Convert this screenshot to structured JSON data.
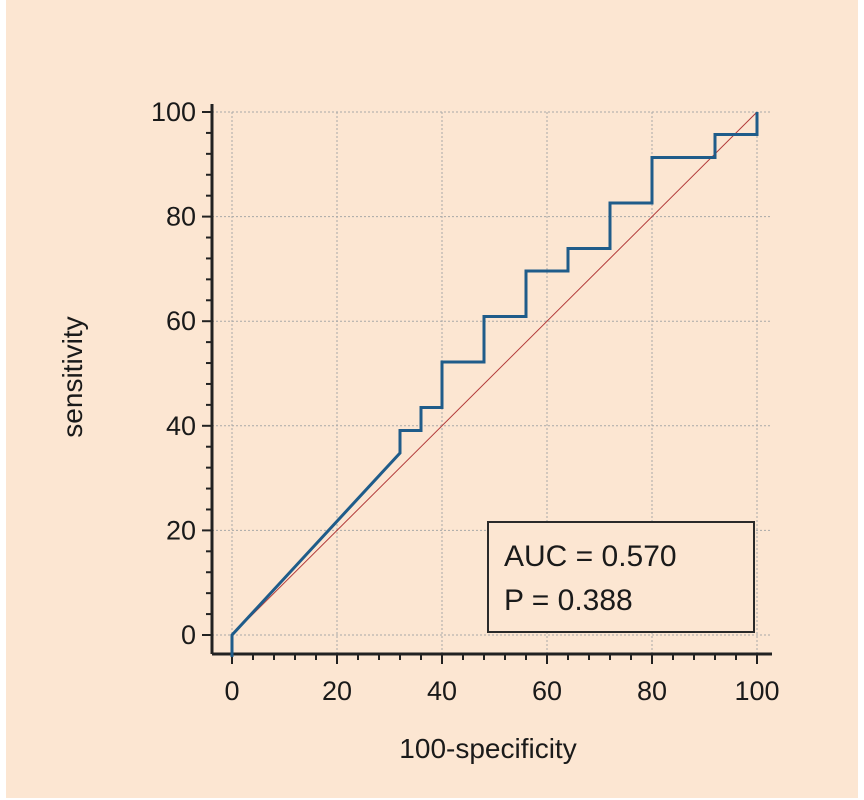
{
  "chart_data": {
    "type": "line",
    "title": "",
    "xlabel": "100-specificity",
    "ylabel": "sensitivity",
    "xlim": [
      0,
      100
    ],
    "ylim": [
      0,
      100
    ],
    "x_ticks": [
      "0",
      "20",
      "40",
      "60",
      "80",
      "100"
    ],
    "y_ticks": [
      "0",
      "20",
      "40",
      "60",
      "80",
      "100"
    ],
    "grid": true,
    "series": [
      {
        "color": "#1f5c8a",
        "x": [
          0,
          32,
          32,
          36,
          36,
          40,
          40,
          48,
          48,
          56,
          56,
          64,
          64,
          72,
          72,
          80,
          80,
          92,
          92,
          100,
          100
        ],
        "y": [
          0,
          34.8,
          39.1,
          39.1,
          43.5,
          43.5,
          52.2,
          52.2,
          60.9,
          60.9,
          69.6,
          69.6,
          73.9,
          73.9,
          82.6,
          82.6,
          91.3,
          91.3,
          95.7,
          95.7,
          100
        ]
      },
      {
        "color": "#b23a3a",
        "x": [
          0,
          100
        ],
        "y": [
          0,
          100
        ]
      }
    ],
    "annotations": {
      "auc": "AUC = 0.570",
      "p": "P = 0.388"
    },
    "colors": {
      "background": "#fce6d2",
      "roc_line": "#1f5c8a",
      "reference_line": "#b23a3a",
      "grid": "#a8a8a8",
      "axis": "#222222"
    }
  }
}
